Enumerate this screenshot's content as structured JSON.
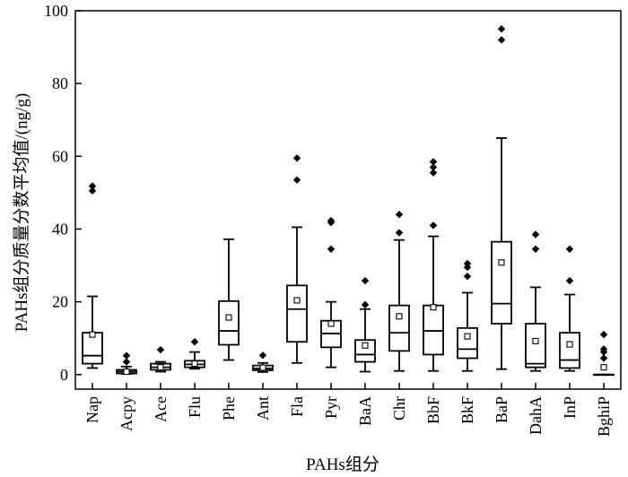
{
  "chart_data": {
    "type": "box",
    "title": "",
    "xlabel": "PAHs组分",
    "ylabel": "PAHs组分质量分数平均值/(ng/g)",
    "ylim": [
      -4,
      100
    ],
    "yticks": [
      0,
      20,
      40,
      60,
      80,
      100
    ],
    "grid": false,
    "legend": "none",
    "colors": {
      "box": "#000000",
      "outlier": "#000000",
      "mean_marker": "#000000"
    },
    "marker_shapes": {
      "outlier": "diamond",
      "mean": "open-square"
    },
    "categories": [
      "Nap",
      "Acpy",
      "Ace",
      "Flu",
      "Phe",
      "Ant",
      "Fla",
      "Pyr",
      "BaA",
      "Chr",
      "BbF",
      "BkF",
      "BaP",
      "DahA",
      "InP",
      "BghiP"
    ],
    "boxes": [
      {
        "category": "Nap",
        "whisker_low": 1.8,
        "q1": 3.0,
        "median": 5.2,
        "q3": 11.5,
        "whisker_high": 21.5,
        "mean": 11.0,
        "outliers": [
          50.5,
          51.8
        ]
      },
      {
        "category": "Acpy",
        "whisker_low": 0.2,
        "q1": 0.3,
        "median": 0.8,
        "q3": 1.3,
        "whisker_high": 2.2,
        "mean": 0.8,
        "outliers": [
          3.5,
          5.2
        ]
      },
      {
        "category": "Ace",
        "whisker_low": 0.8,
        "q1": 1.3,
        "median": 2.0,
        "q3": 3.0,
        "whisker_high": 3.5,
        "mean": 2.0,
        "outliers": [
          6.8
        ]
      },
      {
        "category": "Flu",
        "whisker_low": 1.6,
        "q1": 2.0,
        "median": 2.8,
        "q3": 3.8,
        "whisker_high": 6.2,
        "mean": 3.0,
        "outliers": [
          9.0
        ]
      },
      {
        "category": "Phe",
        "whisker_low": 4.0,
        "q1": 8.2,
        "median": 12.0,
        "q3": 20.2,
        "whisker_high": 37.2,
        "mean": 15.7,
        "outliers": []
      },
      {
        "category": "Ant",
        "whisker_low": 0.7,
        "q1": 1.2,
        "median": 1.7,
        "q3": 2.5,
        "whisker_high": 3.2,
        "mean": 1.9,
        "outliers": [
          5.3
        ]
      },
      {
        "category": "Fla",
        "whisker_low": 3.2,
        "q1": 9.0,
        "median": 18.0,
        "q3": 24.5,
        "whisker_high": 40.5,
        "mean": 20.4,
        "outliers": [
          53.5,
          59.5
        ]
      },
      {
        "category": "Pyr",
        "whisker_low": 2.0,
        "q1": 7.5,
        "median": 11.3,
        "q3": 14.8,
        "whisker_high": 20.0,
        "mean": 14.0,
        "outliers": [
          34.5,
          41.8,
          42.3
        ]
      },
      {
        "category": "BaA",
        "whisker_low": 0.8,
        "q1": 3.5,
        "median": 5.5,
        "q3": 9.5,
        "whisker_high": 18.0,
        "mean": 8.0,
        "outliers": [
          19.2,
          25.8
        ]
      },
      {
        "category": "Chr",
        "whisker_low": 1.0,
        "q1": 6.5,
        "median": 11.5,
        "q3": 19.0,
        "whisker_high": 37.0,
        "mean": 16.0,
        "outliers": [
          39.0,
          44.0
        ]
      },
      {
        "category": "BbF",
        "whisker_low": 1.0,
        "q1": 5.5,
        "median": 12.0,
        "q3": 19.0,
        "whisker_high": 38.0,
        "mean": 18.5,
        "outliers": [
          41.0,
          55.5,
          57.0,
          58.5
        ]
      },
      {
        "category": "BkF",
        "whisker_low": 1.0,
        "q1": 4.5,
        "median": 7.0,
        "q3": 12.8,
        "whisker_high": 22.5,
        "mean": 10.5,
        "outliers": [
          27.0,
          29.5,
          30.5
        ]
      },
      {
        "category": "BaP",
        "whisker_low": 1.5,
        "q1": 14.0,
        "median": 19.5,
        "q3": 36.5,
        "whisker_high": 65.0,
        "mean": 30.8,
        "outliers": [
          92.0,
          95.0
        ]
      },
      {
        "category": "DahA",
        "whisker_low": 1.0,
        "q1": 2.0,
        "median": 3.0,
        "q3": 14.0,
        "whisker_high": 24.0,
        "mean": 9.2,
        "outliers": [
          34.5,
          38.5
        ]
      },
      {
        "category": "InP",
        "whisker_low": 1.0,
        "q1": 1.8,
        "median": 4.0,
        "q3": 11.5,
        "whisker_high": 22.0,
        "mean": 8.3,
        "outliers": [
          25.8,
          34.5
        ]
      },
      {
        "category": "BghiP",
        "whisker_low": 0.0,
        "q1": 0.0,
        "median": 0.0,
        "q3": 0.0,
        "whisker_high": 0.0,
        "mean": 2.0,
        "outliers": [
          4.5,
          6.2,
          7.0,
          11.0
        ]
      }
    ]
  }
}
